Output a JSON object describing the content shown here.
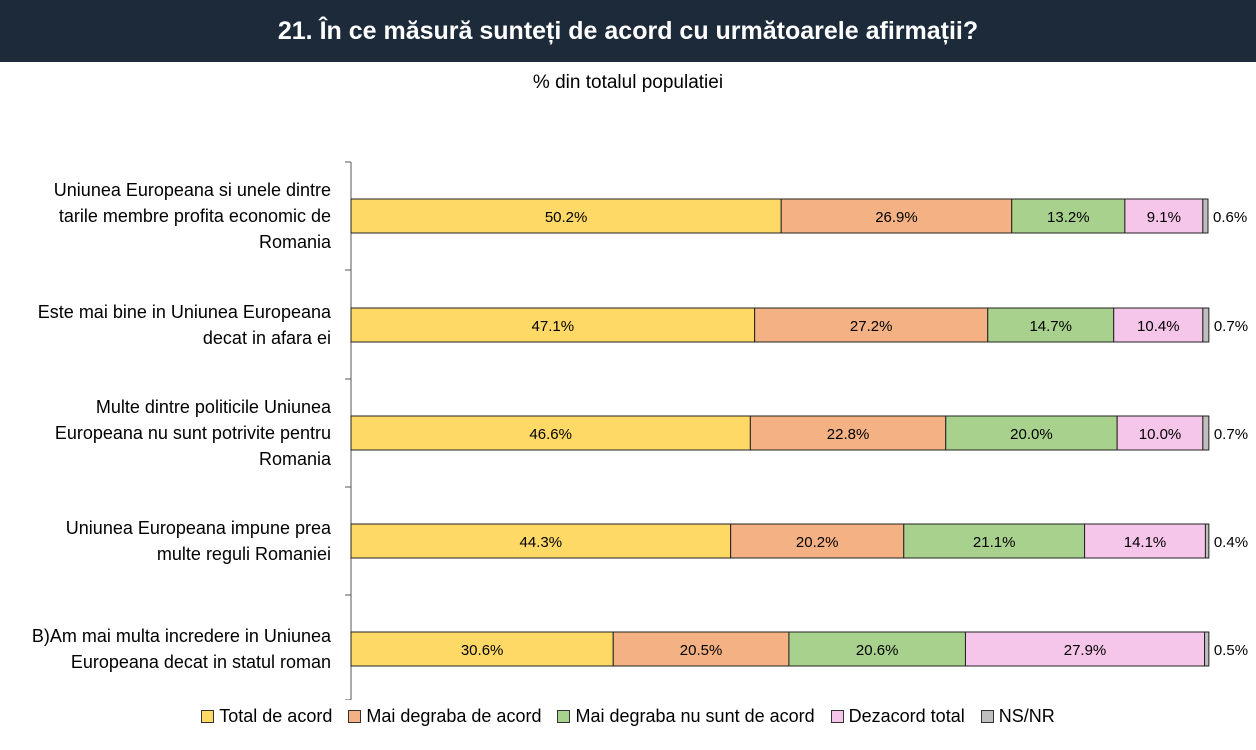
{
  "header": {
    "title": "21. În ce măsură sunteți de acord cu următoarele afirmații?"
  },
  "chart_data": {
    "type": "bar",
    "orientation": "horizontal",
    "stacked": true,
    "subtitle": "% din totalul populatiei",
    "categories": [
      "Uniunea Europeana si unele dintre tarile membre profita economic de Romania",
      "Este mai bine in Uniunea Europeana decat in afara ei",
      "Multe dintre politicile Uniunea Europeana nu sunt potrivite pentru Romania",
      "Uniunea Europeana impune prea multe reguli Romaniei",
      "B)Am mai multa incredere in Uniunea Europeana decat in statul roman"
    ],
    "category_lines": [
      [
        "Uniunea Europeana si unele dintre",
        "tarile membre profita economic de",
        "Romania"
      ],
      [
        "Este mai bine in Uniunea Europeana",
        "decat in afara ei"
      ],
      [
        "Multe dintre politicile Uniunea",
        "Europeana nu sunt potrivite pentru",
        "Romania"
      ],
      [
        "Uniunea Europeana impune prea",
        "multe reguli Romaniei"
      ],
      [
        "B)Am mai multa incredere in Uniunea",
        "Europeana decat in statul roman"
      ]
    ],
    "series": [
      {
        "name": "Total de acord",
        "color": "#ffd966",
        "values": [
          50.2,
          47.1,
          46.6,
          44.3,
          30.6
        ],
        "labels": [
          "50.2%",
          "47.1%",
          "46.6%",
          "44.3%",
          "30.6%"
        ]
      },
      {
        "name": "Mai degraba de acord",
        "color": "#f4b183",
        "values": [
          26.9,
          27.2,
          22.8,
          20.2,
          20.5
        ],
        "labels": [
          "26.9%",
          "27.2%",
          "22.8%",
          "20.2%",
          "20.5%"
        ]
      },
      {
        "name": "Mai degraba nu sunt de acord",
        "color": "#a9d18e",
        "values": [
          13.2,
          14.7,
          20.0,
          21.1,
          20.6
        ],
        "labels": [
          "13.2%",
          "14.7%",
          "20.0%",
          "21.1%",
          "20.6%"
        ]
      },
      {
        "name": "Dezacord total",
        "color": "#f6c6ea",
        "values": [
          9.1,
          10.4,
          10.0,
          14.1,
          27.9
        ],
        "labels": [
          "9.1%",
          "10.4%",
          "10.0%",
          "14.1%",
          "27.9%"
        ]
      },
      {
        "name": "NS/NR",
        "color": "#bfbfbf",
        "values": [
          0.6,
          0.7,
          0.7,
          0.4,
          0.5
        ],
        "labels": [
          "0.6%",
          "0.7%",
          "0.7%",
          "0.4%",
          "0.5%"
        ]
      }
    ],
    "xlim": [
      0,
      100
    ],
    "grid": false,
    "legend_position": "bottom"
  }
}
